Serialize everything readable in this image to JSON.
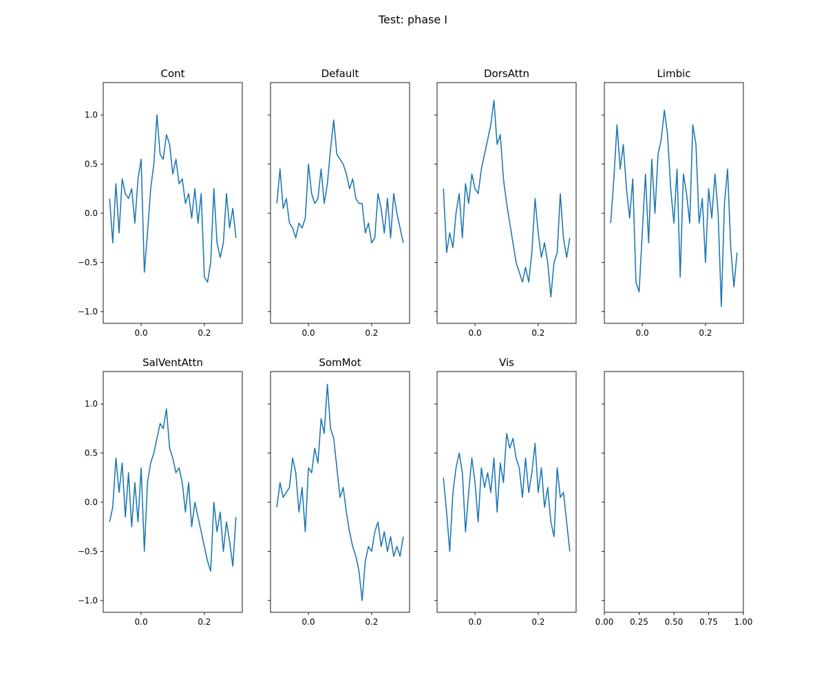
{
  "figure": {
    "suptitle": "Test: phase I",
    "line_color": "#1f77b4"
  },
  "chart_data": [
    {
      "type": "line",
      "title": "Cont",
      "xlabel": "",
      "ylabel": "",
      "xlim": [
        -0.12,
        0.32
      ],
      "ylim": [
        -1.12,
        1.33
      ],
      "xticks": [
        0.0,
        0.2
      ],
      "xtick_labels": [
        "0.0",
        "0.2"
      ],
      "yticks": [
        -1.0,
        -0.5,
        0.0,
        0.5,
        1.0
      ],
      "ytick_labels": [
        "−1.0",
        "−0.5",
        "0.0",
        "0.5",
        "1.0"
      ],
      "show_ytick_labels": true,
      "series": [
        {
          "x": [
            -0.1,
            -0.09,
            -0.08,
            -0.07,
            -0.06,
            -0.05,
            -0.04,
            -0.03,
            -0.02,
            -0.01,
            0.0,
            0.01,
            0.02,
            0.03,
            0.04,
            0.05,
            0.06,
            0.07,
            0.08,
            0.09,
            0.1,
            0.11,
            0.12,
            0.13,
            0.14,
            0.15,
            0.16,
            0.17,
            0.18,
            0.19,
            0.2,
            0.21,
            0.22,
            0.23,
            0.24,
            0.25,
            0.26,
            0.27,
            0.28,
            0.29,
            0.3
          ],
          "y": [
            0.15,
            -0.3,
            0.3,
            -0.2,
            0.35,
            0.2,
            0.15,
            0.25,
            -0.1,
            0.35,
            0.55,
            -0.6,
            -0.2,
            0.25,
            0.5,
            1.0,
            0.6,
            0.55,
            0.8,
            0.7,
            0.4,
            0.55,
            0.3,
            0.35,
            0.1,
            0.2,
            -0.05,
            0.25,
            -0.1,
            0.2,
            -0.65,
            -0.7,
            -0.5,
            0.25,
            -0.3,
            -0.45,
            -0.3,
            0.2,
            -0.15,
            0.05,
            -0.25
          ]
        }
      ]
    },
    {
      "type": "line",
      "title": "Default",
      "xlabel": "",
      "ylabel": "",
      "xlim": [
        -0.12,
        0.32
      ],
      "ylim": [
        -1.12,
        1.33
      ],
      "xticks": [
        0.0,
        0.2
      ],
      "xtick_labels": [
        "0.0",
        "0.2"
      ],
      "yticks": [
        -1.0,
        -0.5,
        0.0,
        0.5,
        1.0
      ],
      "ytick_labels": [
        "−1.0",
        "−0.5",
        "0.0",
        "0.5",
        "1.0"
      ],
      "show_ytick_labels": false,
      "series": [
        {
          "x": [
            -0.1,
            -0.09,
            -0.08,
            -0.07,
            -0.06,
            -0.05,
            -0.04,
            -0.03,
            -0.02,
            -0.01,
            0.0,
            0.01,
            0.02,
            0.03,
            0.04,
            0.05,
            0.06,
            0.07,
            0.08,
            0.09,
            0.1,
            0.11,
            0.12,
            0.13,
            0.14,
            0.15,
            0.16,
            0.17,
            0.18,
            0.19,
            0.2,
            0.21,
            0.22,
            0.23,
            0.24,
            0.25,
            0.26,
            0.27,
            0.28,
            0.29,
            0.3
          ],
          "y": [
            0.1,
            0.45,
            0.05,
            0.15,
            -0.1,
            -0.15,
            -0.25,
            -0.1,
            -0.15,
            -0.05,
            0.5,
            0.2,
            0.1,
            0.15,
            0.45,
            0.1,
            0.3,
            0.65,
            0.95,
            0.6,
            0.55,
            0.5,
            0.4,
            0.25,
            0.35,
            0.15,
            0.1,
            0.1,
            -0.2,
            -0.1,
            -0.3,
            -0.25,
            0.2,
            0.05,
            -0.2,
            0.15,
            -0.25,
            0.2,
            0.0,
            -0.15,
            -0.3
          ]
        }
      ]
    },
    {
      "type": "line",
      "title": "DorsAttn",
      "xlabel": "",
      "ylabel": "",
      "xlim": [
        -0.12,
        0.32
      ],
      "ylim": [
        -1.12,
        1.33
      ],
      "xticks": [
        0.0,
        0.2
      ],
      "xtick_labels": [
        "0.0",
        "0.2"
      ],
      "yticks": [
        -1.0,
        -0.5,
        0.0,
        0.5,
        1.0
      ],
      "ytick_labels": [
        "−1.0",
        "−0.5",
        "0.0",
        "0.5",
        "1.0"
      ],
      "show_ytick_labels": false,
      "series": [
        {
          "x": [
            -0.1,
            -0.09,
            -0.08,
            -0.07,
            -0.06,
            -0.05,
            -0.04,
            -0.03,
            -0.02,
            -0.01,
            0.0,
            0.01,
            0.02,
            0.03,
            0.04,
            0.05,
            0.06,
            0.07,
            0.08,
            0.09,
            0.1,
            0.11,
            0.12,
            0.13,
            0.14,
            0.15,
            0.16,
            0.17,
            0.18,
            0.19,
            0.2,
            0.21,
            0.22,
            0.23,
            0.24,
            0.25,
            0.26,
            0.27,
            0.28,
            0.29,
            0.3
          ],
          "y": [
            0.25,
            -0.4,
            -0.2,
            -0.35,
            0.0,
            0.2,
            -0.25,
            0.3,
            0.1,
            0.4,
            0.25,
            0.2,
            0.45,
            0.6,
            0.75,
            0.9,
            1.15,
            0.7,
            0.8,
            0.35,
            0.1,
            -0.1,
            -0.3,
            -0.5,
            -0.6,
            -0.7,
            -0.55,
            -0.7,
            -0.4,
            0.15,
            -0.2,
            -0.45,
            -0.3,
            -0.5,
            -0.85,
            -0.5,
            -0.4,
            0.2,
            -0.25,
            -0.45,
            -0.25
          ]
        }
      ]
    },
    {
      "type": "line",
      "title": "Limbic",
      "xlabel": "",
      "ylabel": "",
      "xlim": [
        -0.12,
        0.32
      ],
      "ylim": [
        -1.12,
        1.33
      ],
      "xticks": [
        0.0,
        0.2
      ],
      "xtick_labels": [
        "0.0",
        "0.2"
      ],
      "yticks": [
        -1.0,
        -0.5,
        0.0,
        0.5,
        1.0
      ],
      "ytick_labels": [
        "−1.0",
        "−0.5",
        "0.0",
        "0.5",
        "1.0"
      ],
      "show_ytick_labels": false,
      "series": [
        {
          "x": [
            -0.1,
            -0.09,
            -0.08,
            -0.07,
            -0.06,
            -0.05,
            -0.04,
            -0.03,
            -0.02,
            -0.01,
            0.0,
            0.01,
            0.02,
            0.03,
            0.04,
            0.05,
            0.06,
            0.07,
            0.08,
            0.09,
            0.1,
            0.11,
            0.12,
            0.13,
            0.14,
            0.15,
            0.16,
            0.17,
            0.18,
            0.19,
            0.2,
            0.21,
            0.22,
            0.23,
            0.24,
            0.25,
            0.26,
            0.27,
            0.28,
            0.29,
            0.3
          ],
          "y": [
            -0.1,
            0.35,
            0.9,
            0.45,
            0.7,
            0.25,
            -0.05,
            0.35,
            -0.7,
            -0.8,
            -0.2,
            0.4,
            -0.3,
            0.55,
            0.0,
            0.6,
            0.75,
            1.05,
            0.8,
            0.25,
            -0.1,
            0.45,
            -0.65,
            0.4,
            0.2,
            -0.1,
            0.9,
            0.7,
            -0.1,
            0.15,
            -0.5,
            0.25,
            -0.05,
            0.4,
            0.0,
            -0.95,
            0.1,
            0.45,
            -0.35,
            -0.75,
            -0.4
          ]
        }
      ]
    },
    {
      "type": "line",
      "title": "SalVentAttn",
      "xlabel": "",
      "ylabel": "",
      "xlim": [
        -0.12,
        0.32
      ],
      "ylim": [
        -1.12,
        1.33
      ],
      "xticks": [
        0.0,
        0.2
      ],
      "xtick_labels": [
        "0.0",
        "0.2"
      ],
      "yticks": [
        -1.0,
        -0.5,
        0.0,
        0.5,
        1.0
      ],
      "ytick_labels": [
        "−1.0",
        "−0.5",
        "0.0",
        "0.5",
        "1.0"
      ],
      "show_ytick_labels": true,
      "series": [
        {
          "x": [
            -0.1,
            -0.09,
            -0.08,
            -0.07,
            -0.06,
            -0.05,
            -0.04,
            -0.03,
            -0.02,
            -0.01,
            0.0,
            0.01,
            0.02,
            0.03,
            0.04,
            0.05,
            0.06,
            0.07,
            0.08,
            0.09,
            0.1,
            0.11,
            0.12,
            0.13,
            0.14,
            0.15,
            0.16,
            0.17,
            0.18,
            0.19,
            0.2,
            0.21,
            0.22,
            0.23,
            0.24,
            0.25,
            0.26,
            0.27,
            0.28,
            0.29,
            0.3
          ],
          "y": [
            -0.2,
            -0.05,
            0.45,
            0.1,
            0.4,
            -0.15,
            0.3,
            -0.25,
            0.2,
            -0.2,
            0.35,
            -0.5,
            0.2,
            0.4,
            0.5,
            0.65,
            0.8,
            0.75,
            0.95,
            0.55,
            0.45,
            0.3,
            0.35,
            0.2,
            -0.1,
            0.2,
            -0.25,
            0.0,
            -0.15,
            -0.3,
            -0.45,
            -0.6,
            -0.7,
            0.0,
            -0.3,
            -0.1,
            -0.5,
            -0.2,
            -0.4,
            -0.65,
            -0.15
          ]
        }
      ]
    },
    {
      "type": "line",
      "title": "SomMot",
      "xlabel": "",
      "ylabel": "",
      "xlim": [
        -0.12,
        0.32
      ],
      "ylim": [
        -1.12,
        1.33
      ],
      "xticks": [
        0.0,
        0.2
      ],
      "xtick_labels": [
        "0.0",
        "0.2"
      ],
      "yticks": [
        -1.0,
        -0.5,
        0.0,
        0.5,
        1.0
      ],
      "ytick_labels": [
        "−1.0",
        "−0.5",
        "0.0",
        "0.5",
        "1.0"
      ],
      "show_ytick_labels": false,
      "series": [
        {
          "x": [
            -0.1,
            -0.09,
            -0.08,
            -0.07,
            -0.06,
            -0.05,
            -0.04,
            -0.03,
            -0.02,
            -0.01,
            0.0,
            0.01,
            0.02,
            0.03,
            0.04,
            0.05,
            0.06,
            0.07,
            0.08,
            0.09,
            0.1,
            0.11,
            0.12,
            0.13,
            0.14,
            0.15,
            0.16,
            0.17,
            0.18,
            0.19,
            0.2,
            0.21,
            0.22,
            0.23,
            0.24,
            0.25,
            0.26,
            0.27,
            0.28,
            0.29,
            0.3
          ],
          "y": [
            -0.05,
            0.2,
            0.05,
            0.1,
            0.15,
            0.45,
            0.3,
            -0.1,
            0.15,
            -0.3,
            0.35,
            0.3,
            0.55,
            0.4,
            0.85,
            0.7,
            1.2,
            0.75,
            0.65,
            0.35,
            0.05,
            0.15,
            -0.1,
            -0.3,
            -0.45,
            -0.55,
            -0.7,
            -1.0,
            -0.6,
            -0.45,
            -0.5,
            -0.3,
            -0.2,
            -0.45,
            -0.3,
            -0.5,
            -0.35,
            -0.55,
            -0.45,
            -0.55,
            -0.35
          ]
        }
      ]
    },
    {
      "type": "line",
      "title": "Vis",
      "xlabel": "",
      "ylabel": "",
      "xlim": [
        -0.12,
        0.32
      ],
      "ylim": [
        -1.12,
        1.33
      ],
      "xticks": [
        0.0,
        0.2
      ],
      "xtick_labels": [
        "0.0",
        "0.2"
      ],
      "yticks": [
        -1.0,
        -0.5,
        0.0,
        0.5,
        1.0
      ],
      "ytick_labels": [
        "−1.0",
        "−0.5",
        "0.0",
        "0.5",
        "1.0"
      ],
      "show_ytick_labels": false,
      "series": [
        {
          "x": [
            -0.1,
            -0.09,
            -0.08,
            -0.07,
            -0.06,
            -0.05,
            -0.04,
            -0.03,
            -0.02,
            -0.01,
            0.0,
            0.01,
            0.02,
            0.03,
            0.04,
            0.05,
            0.06,
            0.07,
            0.08,
            0.09,
            0.1,
            0.11,
            0.12,
            0.13,
            0.14,
            0.15,
            0.16,
            0.17,
            0.18,
            0.19,
            0.2,
            0.21,
            0.22,
            0.23,
            0.24,
            0.25,
            0.26,
            0.27,
            0.28,
            0.29,
            0.3
          ],
          "y": [
            0.25,
            -0.1,
            -0.5,
            0.1,
            0.35,
            0.5,
            0.3,
            -0.3,
            0.1,
            0.45,
            0.2,
            -0.2,
            0.35,
            0.15,
            0.3,
            0.1,
            0.45,
            -0.1,
            0.4,
            0.2,
            0.7,
            0.55,
            0.65,
            0.45,
            0.35,
            0.05,
            0.45,
            0.1,
            0.3,
            0.6,
            0.1,
            0.35,
            -0.05,
            0.15,
            -0.2,
            -0.35,
            0.35,
            0.05,
            0.1,
            -0.2,
            -0.5
          ]
        }
      ]
    },
    {
      "type": "line",
      "title": "",
      "xlabel": "",
      "ylabel": "",
      "xlim": [
        0.0,
        1.0
      ],
      "ylim": [
        -1.12,
        1.33
      ],
      "xticks": [
        0.0,
        0.25,
        0.5,
        0.75,
        1.0
      ],
      "xtick_labels": [
        "0.00",
        "0.25",
        "0.50",
        "0.75",
        "1.00"
      ],
      "yticks": [
        -1.0,
        -0.5,
        0.0,
        0.5,
        1.0
      ],
      "ytick_labels": [
        "−1.0",
        "−0.5",
        "0.0",
        "0.5",
        "1.0"
      ],
      "show_ytick_labels": false,
      "series": []
    }
  ]
}
